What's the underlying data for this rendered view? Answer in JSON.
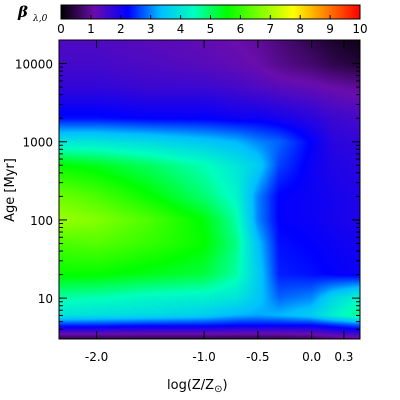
{
  "chart_data": {
    "type": "heatmap",
    "colorbar": {
      "symbol": "β",
      "subscript": "λ,0",
      "range": [
        0,
        10
      ],
      "ticks": [
        "0",
        "1",
        "2",
        "3",
        "4",
        "5",
        "6",
        "7",
        "8",
        "9",
        "10"
      ],
      "colormap": [
        "#000000",
        "#6a0dad",
        "#0000ff",
        "#00bfff",
        "#00ffbf",
        "#00ff00",
        "#80ff00",
        "#ffff00",
        "#ff8000",
        "#ff0000"
      ]
    },
    "x_axis": {
      "label": "log(Z/Z",
      "label_sub": "⊙",
      "label_close": ")",
      "range": [
        -2.35,
        0.45
      ],
      "ticks": [
        {
          "value": -2.0,
          "label": "-2.0"
        },
        {
          "value": -1.0,
          "label": "-1.0"
        },
        {
          "value": -0.5,
          "label": "-0.5"
        },
        {
          "value": 0.0,
          "label": "0.0"
        },
        {
          "value": 0.3,
          "label": "0.3"
        }
      ]
    },
    "y_axis": {
      "label": "Age [Myr]",
      "scale": "log",
      "range": [
        3,
        20000
      ],
      "ticks": [
        {
          "value": 10,
          "label": "10"
        },
        {
          "value": 100,
          "label": "100"
        },
        {
          "value": 1000,
          "label": "1000"
        },
        {
          "value": 10000,
          "label": "10000"
        }
      ]
    },
    "grid_x": [
      -2.35,
      -2.0,
      -1.5,
      -1.0,
      -0.7,
      -0.5,
      -0.3,
      0.0,
      0.2,
      0.45
    ],
    "grid_y": [
      3,
      4.5,
      6,
      10,
      20,
      50,
      100,
      200,
      500,
      1000,
      2000,
      5000,
      10000,
      20000
    ],
    "values": [
      [
        0.5,
        0.5,
        0.5,
        0.5,
        0.5,
        0.5,
        0.5,
        0.6,
        0.8,
        1.0
      ],
      [
        2.5,
        2.5,
        2.4,
        2.4,
        2.3,
        2.3,
        2.3,
        2.3,
        2.5,
        2.8
      ],
      [
        4.0,
        3.9,
        3.8,
        3.6,
        3.3,
        3.2,
        3.3,
        3.6,
        4.2,
        4.8
      ],
      [
        4.6,
        4.5,
        4.3,
        4.2,
        4.0,
        3.5,
        2.8,
        3.0,
        3.7,
        4.3
      ],
      [
        5.6,
        5.6,
        5.4,
        5.2,
        4.6,
        3.6,
        2.4,
        2.3,
        2.2,
        2.1
      ],
      [
        6.2,
        6.3,
        6.0,
        5.6,
        4.8,
        3.4,
        2.3,
        2.2,
        2.1,
        2.0
      ],
      [
        6.9,
        6.7,
        6.2,
        5.5,
        4.6,
        3.0,
        2.2,
        2.1,
        2.0,
        1.9
      ],
      [
        6.5,
        6.2,
        5.6,
        4.9,
        4.3,
        3.0,
        2.2,
        2.1,
        2.0,
        1.9
      ],
      [
        5.6,
        5.4,
        5.0,
        4.5,
        4.0,
        3.6,
        2.6,
        2.1,
        1.9,
        1.8
      ],
      [
        4.0,
        4.0,
        3.8,
        3.5,
        3.3,
        3.0,
        2.8,
        2.2,
        1.8,
        1.7
      ],
      [
        2.3,
        2.3,
        2.2,
        2.2,
        2.1,
        2.1,
        2.0,
        1.8,
        1.6,
        1.5
      ],
      [
        1.7,
        1.7,
        1.6,
        1.6,
        1.5,
        1.4,
        1.3,
        1.2,
        1.1,
        1.0
      ],
      [
        1.5,
        1.5,
        1.4,
        1.3,
        1.2,
        1.1,
        0.9,
        0.7,
        0.5,
        0.35
      ],
      [
        1.4,
        1.4,
        1.3,
        1.2,
        1.1,
        1.0,
        0.8,
        0.5,
        0.3,
        0.15
      ]
    ]
  }
}
